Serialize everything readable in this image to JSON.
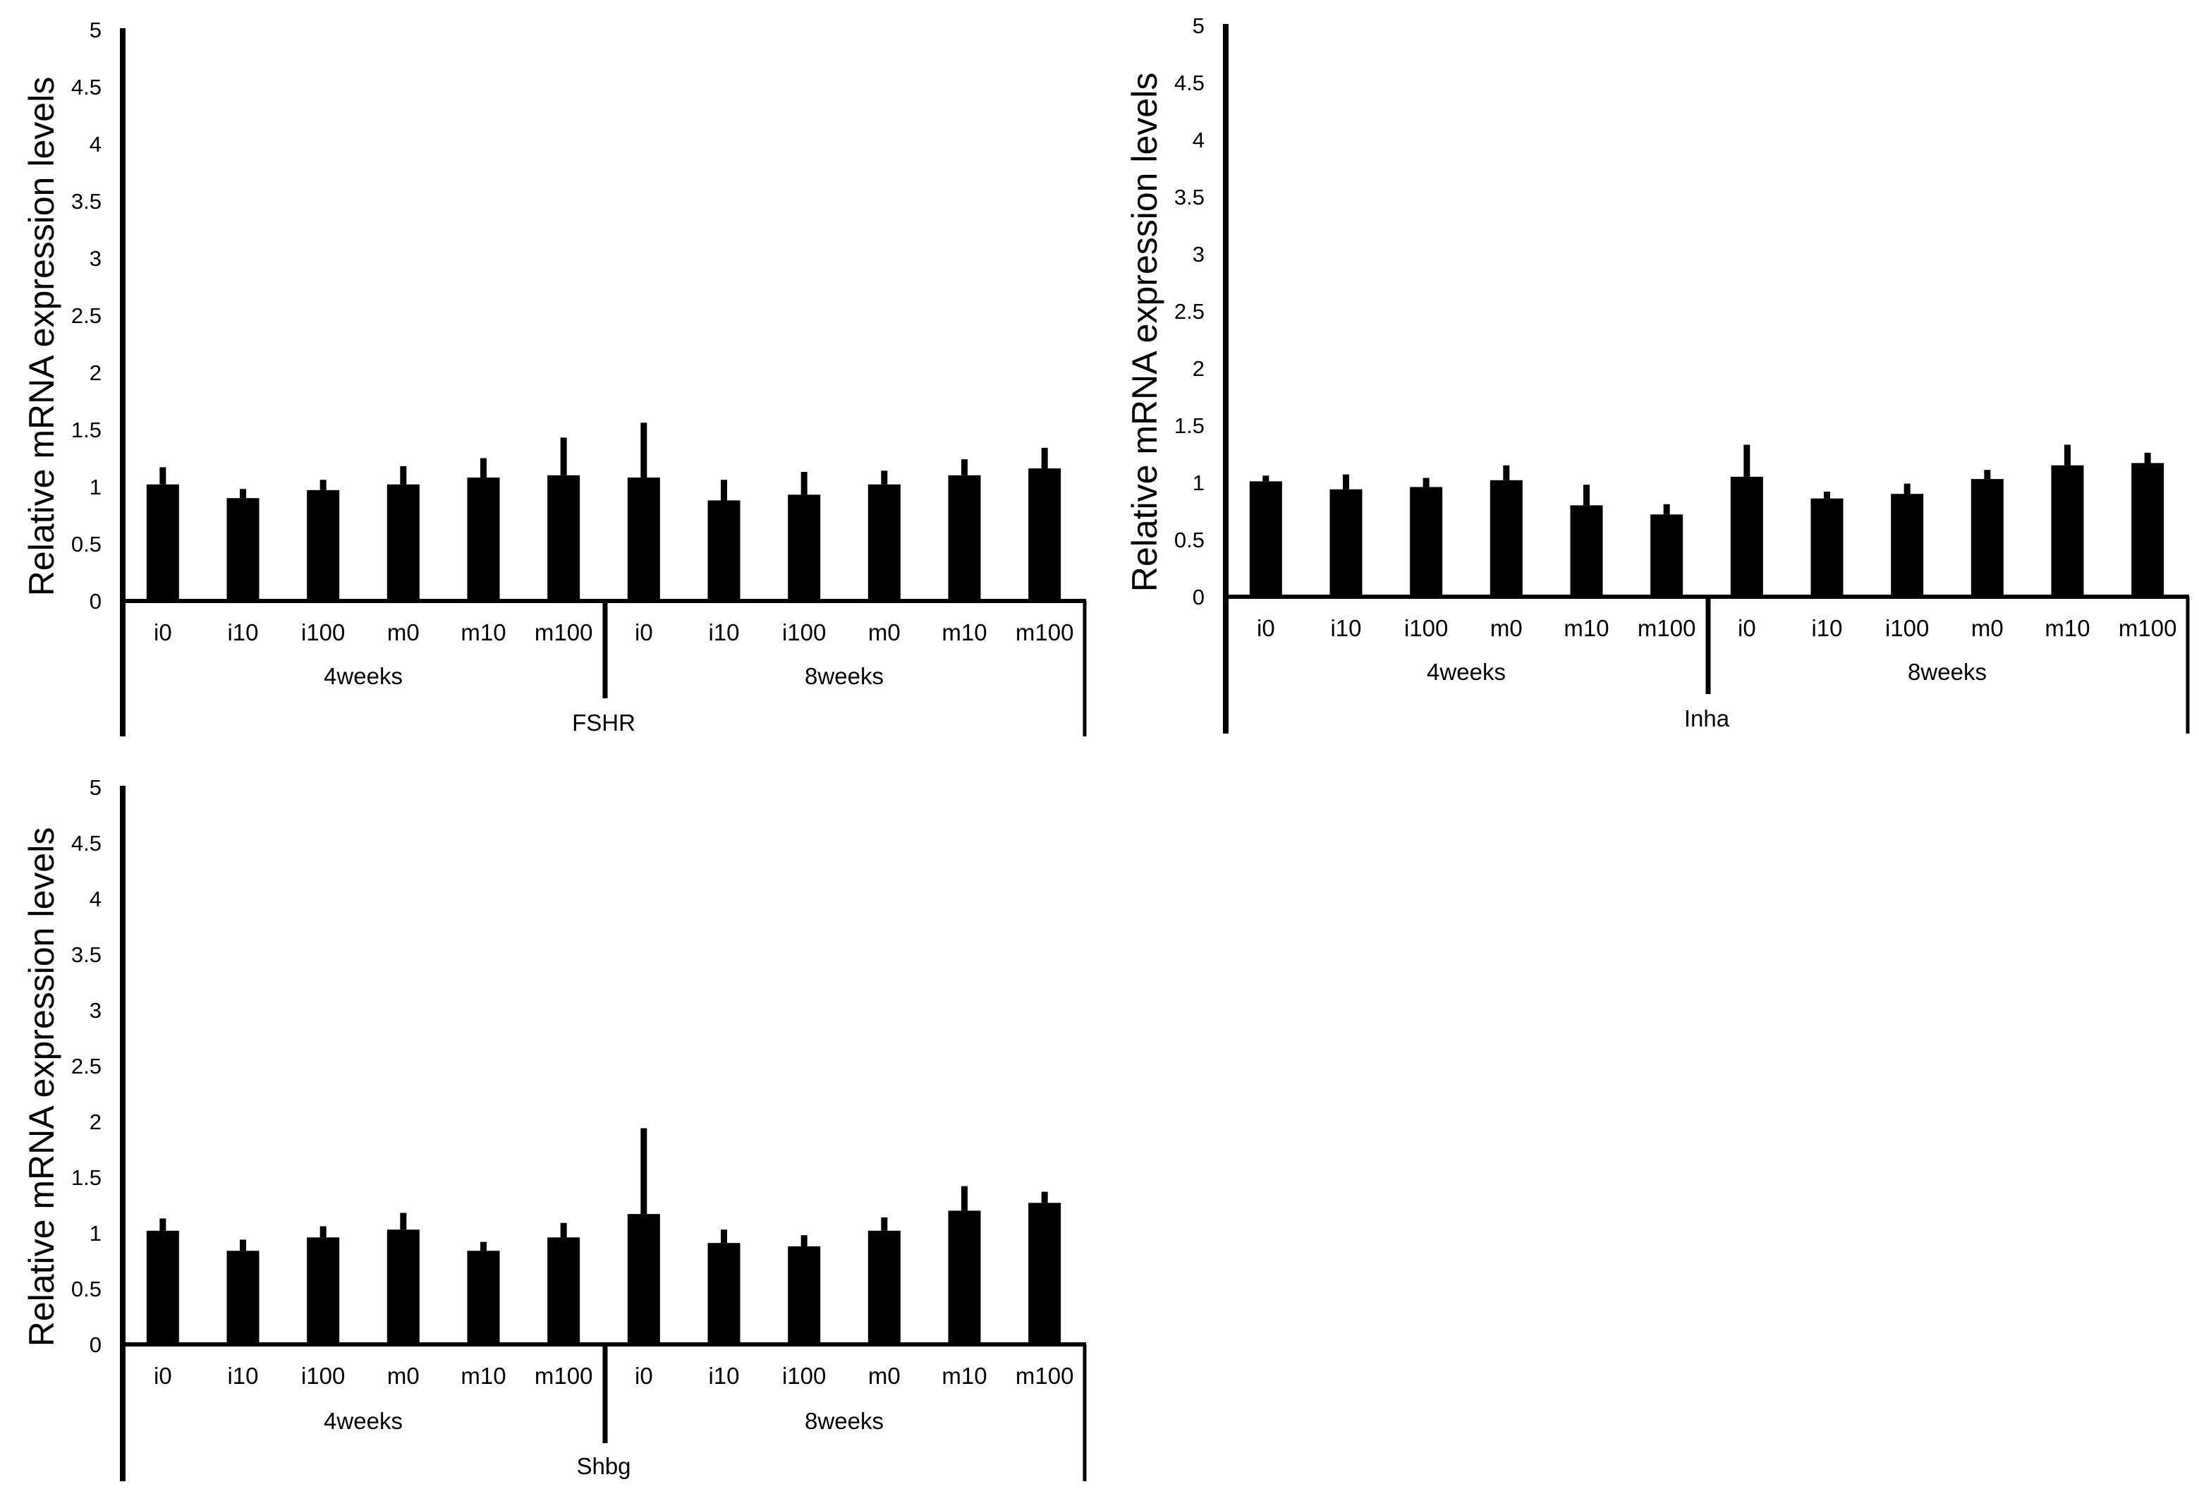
{
  "chart_data": [
    {
      "type": "bar",
      "title": "",
      "xlabel": "FSHR",
      "ylabel": "Relative mRNA expression levels",
      "ylim": [
        0,
        5
      ],
      "yticks": [
        "0",
        "0.5",
        "1",
        "1.5",
        "2",
        "2.5",
        "3",
        "3.5",
        "4",
        "4.5",
        "5"
      ],
      "groups": [
        "4weeks",
        "8weeks"
      ],
      "categories": [
        "i0",
        "i10",
        "i100",
        "m0",
        "m10",
        "m100",
        "i0",
        "i10",
        "i100",
        "m0",
        "m10",
        "m100"
      ],
      "values": [
        1.02,
        0.9,
        0.97,
        1.02,
        1.08,
        1.1,
        1.08,
        0.88,
        0.93,
        1.02,
        1.1,
        1.16
      ],
      "errors": [
        0.15,
        0.08,
        0.09,
        0.16,
        0.17,
        0.33,
        0.48,
        0.18,
        0.2,
        0.12,
        0.14,
        0.18
      ],
      "grid": false,
      "legend": "none",
      "bar_color": "#000000"
    },
    {
      "type": "bar",
      "title": "",
      "xlabel": "Inha",
      "ylabel": "Relative mRNA expression levels",
      "ylim": [
        0,
        5
      ],
      "yticks": [
        "0",
        "0.5",
        "1",
        "1.5",
        "2",
        "2.5",
        "3",
        "3.5",
        "4",
        "4.5",
        "5"
      ],
      "groups": [
        "4weeks",
        "8weeks"
      ],
      "categories": [
        "i0",
        "i10",
        "i100",
        "m0",
        "m10",
        "m100",
        "i0",
        "i10",
        "i100",
        "m0",
        "m10",
        "m100"
      ],
      "values": [
        1.01,
        0.94,
        0.96,
        1.02,
        0.8,
        0.72,
        1.05,
        0.86,
        0.9,
        1.03,
        1.15,
        1.17
      ],
      "errors": [
        0.05,
        0.13,
        0.08,
        0.13,
        0.18,
        0.09,
        0.28,
        0.06,
        0.09,
        0.08,
        0.18,
        0.09
      ],
      "grid": false,
      "legend": "none",
      "bar_color": "#000000"
    },
    {
      "type": "bar",
      "title": "",
      "xlabel": "Shbg",
      "ylabel": "Relative mRNA expression levels",
      "ylim": [
        0,
        5
      ],
      "yticks": [
        "0",
        "0.5",
        "1",
        "1.5",
        "2",
        "2.5",
        "3",
        "3.5",
        "4",
        "4.5",
        "5"
      ],
      "groups": [
        "4weeks",
        "8weeks"
      ],
      "categories": [
        "i0",
        "i10",
        "i100",
        "m0",
        "m10",
        "m100",
        "i0",
        "i10",
        "i100",
        "m0",
        "m10",
        "m100"
      ],
      "values": [
        1.02,
        0.84,
        0.96,
        1.03,
        0.84,
        0.96,
        1.17,
        0.91,
        0.88,
        1.02,
        1.2,
        1.27
      ],
      "errors": [
        0.11,
        0.1,
        0.1,
        0.15,
        0.08,
        0.13,
        0.77,
        0.12,
        0.1,
        0.12,
        0.22,
        0.1
      ],
      "grid": false,
      "legend": "none",
      "bar_color": "#000000"
    }
  ]
}
